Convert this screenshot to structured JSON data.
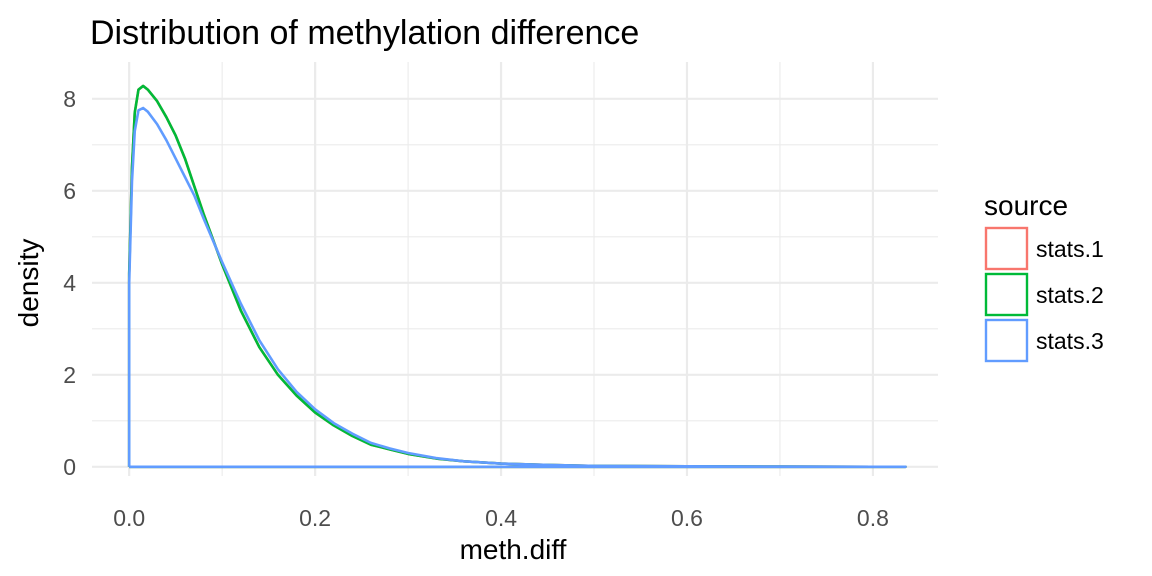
{
  "chart_data": {
    "type": "line",
    "title": "Distribution of methylation difference",
    "xlabel": "meth.diff",
    "ylabel": "density",
    "xlim": [
      -0.04,
      0.87
    ],
    "ylim": [
      -0.2,
      8.8
    ],
    "x_ticks": [
      0.0,
      0.2,
      0.4,
      0.6,
      0.8
    ],
    "x_tick_labels": [
      "0.0",
      "0.2",
      "0.4",
      "0.6",
      "0.8"
    ],
    "y_ticks": [
      0,
      2,
      4,
      6,
      8
    ],
    "y_tick_labels": [
      "0",
      "2",
      "4",
      "6",
      "8"
    ],
    "grid": true,
    "legend": {
      "title": "source",
      "position": "right"
    },
    "x": [
      0.0,
      0.0,
      0.003,
      0.006,
      0.01,
      0.015,
      0.02,
      0.03,
      0.04,
      0.05,
      0.06,
      0.07,
      0.08,
      0.1,
      0.12,
      0.14,
      0.16,
      0.18,
      0.2,
      0.22,
      0.24,
      0.26,
      0.28,
      0.3,
      0.33,
      0.36,
      0.4,
      0.45,
      0.5,
      0.6,
      0.7,
      0.8,
      0.835,
      0.835,
      0.0
    ],
    "series": [
      {
        "name": "stats.1",
        "color": "#F8766D",
        "values": [
          0,
          4.2,
          6.5,
          7.7,
          8.2,
          8.28,
          8.2,
          7.95,
          7.6,
          7.2,
          6.7,
          6.1,
          5.5,
          4.4,
          3.4,
          2.6,
          2.0,
          1.55,
          1.18,
          0.9,
          0.67,
          0.48,
          0.38,
          0.28,
          0.18,
          0.12,
          0.07,
          0.04,
          0.02,
          0.01,
          0.005,
          0.0,
          0.0,
          0,
          0
        ]
      },
      {
        "name": "stats.2",
        "color": "#00BA38",
        "values": [
          0,
          4.2,
          6.5,
          7.7,
          8.2,
          8.28,
          8.2,
          7.95,
          7.6,
          7.2,
          6.7,
          6.1,
          5.5,
          4.4,
          3.4,
          2.6,
          2.0,
          1.55,
          1.18,
          0.9,
          0.67,
          0.48,
          0.38,
          0.28,
          0.18,
          0.12,
          0.07,
          0.04,
          0.02,
          0.01,
          0.005,
          0.0,
          0.0,
          0,
          0
        ]
      },
      {
        "name": "stats.3",
        "color": "#619CFF",
        "values": [
          0,
          4.0,
          6.2,
          7.3,
          7.75,
          7.8,
          7.72,
          7.45,
          7.1,
          6.7,
          6.3,
          5.9,
          5.4,
          4.45,
          3.55,
          2.75,
          2.12,
          1.63,
          1.25,
          0.95,
          0.72,
          0.52,
          0.4,
          0.3,
          0.19,
          0.12,
          0.07,
          0.04,
          0.02,
          0.01,
          0.005,
          0.0,
          0.0,
          0,
          0
        ]
      }
    ]
  }
}
